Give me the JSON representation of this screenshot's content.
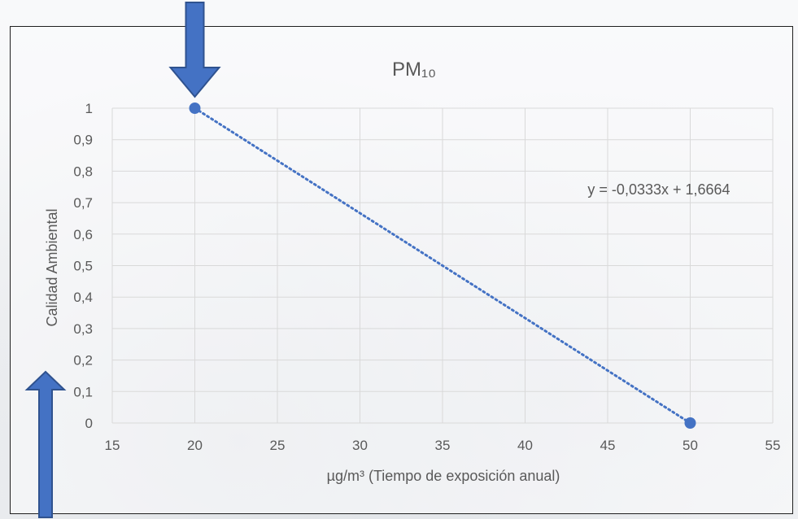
{
  "chart_data": {
    "type": "scatter",
    "title": "PM₁₀",
    "xlabel": "µg/m³ (Tiempo de exposición anual)",
    "ylabel": "Calidad Ambiental",
    "xlim": [
      15,
      55
    ],
    "ylim": [
      0,
      1
    ],
    "x_ticks": [
      "15",
      "20",
      "25",
      "30",
      "35",
      "40",
      "45",
      "50",
      "55"
    ],
    "y_ticks": [
      "0",
      "0,1",
      "0,2",
      "0,3",
      "0,4",
      "0,5",
      "0,6",
      "0,7",
      "0,8",
      "0,9",
      "1"
    ],
    "grid": true,
    "points": [
      {
        "x": 20,
        "y": 1
      },
      {
        "x": 50,
        "y": 0
      }
    ],
    "trendline": {
      "type": "linear",
      "style": "dotted",
      "slope": -0.0333,
      "intercept": 1.6664,
      "equation": "y = -0,0333x + 1,6664"
    },
    "annotations": [
      {
        "type": "arrow",
        "direction": "down",
        "points_to": {
          "x": 20,
          "y": 1
        }
      },
      {
        "type": "arrow",
        "direction": "up",
        "points_to_axis": "y",
        "near_value": 0.15
      }
    ],
    "colors": {
      "marker": "#4472c4",
      "trendline": "#4472c4",
      "arrow_fill": "#4472c4",
      "arrow_stroke": "#2f528f",
      "grid": "#d9d9d9",
      "text": "#595959"
    }
  }
}
